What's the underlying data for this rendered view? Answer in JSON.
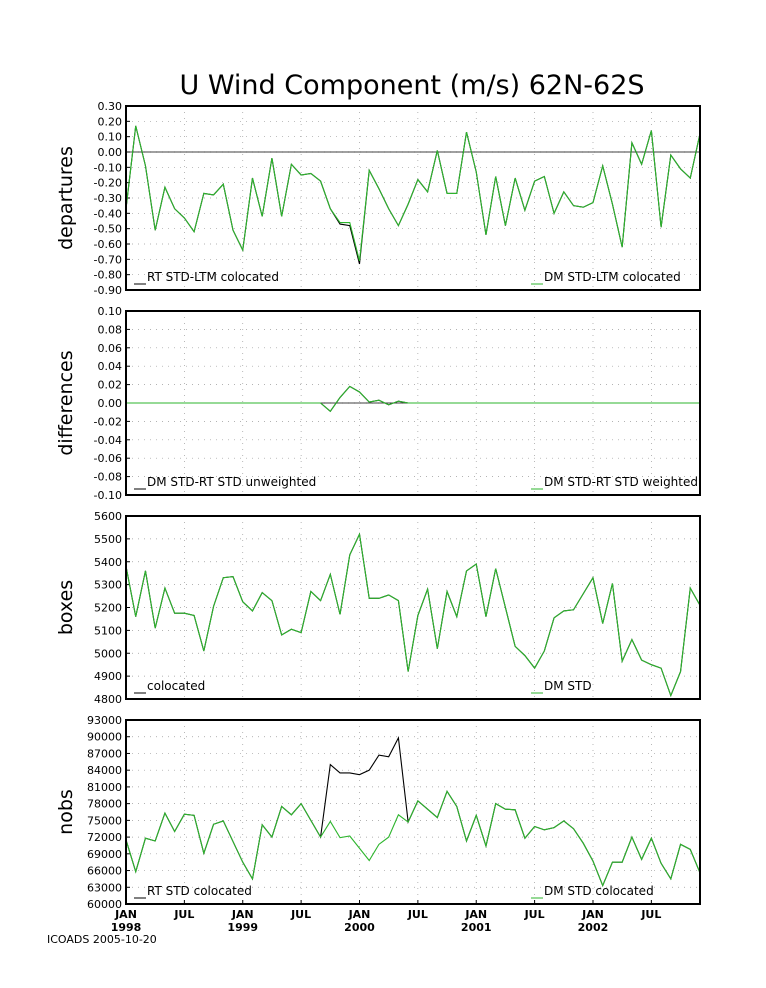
{
  "footer": "ICOADS 2005-10-20",
  "colors": {
    "rt": "#000000",
    "dm": "#2db52d"
  },
  "chart_data": {
    "type": "line",
    "title": "U Wind Component (m/s) 62N-62S",
    "x": {
      "start": "1998-01",
      "months": 60,
      "tick_labels": [
        {
          "label": "JAN",
          "year": "1998",
          "month_index": 0
        },
        {
          "label": "JUL",
          "year": "",
          "month_index": 6
        },
        {
          "label": "JAN",
          "year": "1999",
          "month_index": 12
        },
        {
          "label": "JUL",
          "year": "",
          "month_index": 18
        },
        {
          "label": "JAN",
          "year": "2000",
          "month_index": 24
        },
        {
          "label": "JUL",
          "year": "",
          "month_index": 30
        },
        {
          "label": "JAN",
          "year": "2001",
          "month_index": 36
        },
        {
          "label": "JUL",
          "year": "",
          "month_index": 42
        },
        {
          "label": "JAN",
          "year": "2002",
          "month_index": 48
        },
        {
          "label": "JUL",
          "year": "",
          "month_index": 54
        }
      ]
    },
    "panels": [
      {
        "ylabel": "departures",
        "ylim": [
          -0.9,
          0.3
        ],
        "ystep": 0.1,
        "decimals": 2,
        "zero_line": true,
        "legend": [
          "RT STD-LTM colocated",
          "DM STD-LTM colocated"
        ],
        "series": [
          {
            "name": "RT STD-LTM colocated",
            "color": "#000000",
            "values": [
              -0.37,
              0.17,
              -0.09,
              -0.51,
              -0.23,
              -0.37,
              -0.43,
              -0.52,
              -0.27,
              -0.28,
              -0.21,
              -0.51,
              -0.64,
              -0.17,
              -0.42,
              -0.04,
              -0.42,
              -0.08,
              -0.15,
              -0.14,
              -0.19,
              -0.37,
              -0.47,
              -0.48,
              -0.73,
              -0.12,
              -0.24,
              -0.37,
              -0.48,
              -0.34,
              -0.18,
              -0.26,
              0.01,
              -0.27,
              -0.27,
              0.13,
              -0.13,
              -0.54,
              -0.16,
              -0.48,
              -0.17,
              -0.38,
              -0.19,
              -0.16,
              -0.4,
              -0.26,
              -0.35,
              -0.36,
              -0.33,
              -0.09,
              -0.34,
              -0.62,
              0.06,
              -0.08,
              0.14,
              -0.49,
              -0.02,
              -0.11,
              -0.17,
              0.12
            ]
          },
          {
            "name": "DM STD-LTM colocated",
            "color": "#2db52d",
            "values": [
              -0.37,
              0.17,
              -0.09,
              -0.51,
              -0.23,
              -0.37,
              -0.43,
              -0.52,
              -0.27,
              -0.28,
              -0.21,
              -0.51,
              -0.64,
              -0.17,
              -0.42,
              -0.04,
              -0.42,
              -0.08,
              -0.15,
              -0.14,
              -0.19,
              -0.37,
              -0.46,
              -0.46,
              -0.71,
              -0.12,
              -0.24,
              -0.37,
              -0.48,
              -0.34,
              -0.18,
              -0.26,
              0.01,
              -0.27,
              -0.27,
              0.13,
              -0.13,
              -0.54,
              -0.16,
              -0.48,
              -0.17,
              -0.38,
              -0.19,
              -0.16,
              -0.4,
              -0.26,
              -0.35,
              -0.36,
              -0.33,
              -0.09,
              -0.34,
              -0.62,
              0.06,
              -0.08,
              0.14,
              -0.49,
              -0.02,
              -0.11,
              -0.17,
              0.12
            ]
          }
        ]
      },
      {
        "ylabel": "differences",
        "ylim": [
          -0.1,
          0.1
        ],
        "ystep": 0.02,
        "decimals": 2,
        "zero_line": true,
        "legend": [
          "DM STD-RT STD unweighted",
          "DM STD-RT STD weighted"
        ],
        "series": [
          {
            "name": "DM STD-RT STD unweighted",
            "color": "#000000",
            "values": [
              0,
              0,
              0,
              0,
              0,
              0,
              0,
              0,
              0,
              0,
              0,
              0,
              0,
              0,
              0,
              0,
              0,
              0,
              0,
              0,
              0,
              -0.009,
              0.006,
              0.018,
              0.012,
              0.001,
              0.003,
              -0.002,
              0.002,
              0,
              0,
              0,
              0,
              0,
              0,
              0,
              0,
              0,
              0,
              0,
              0,
              0,
              0,
              0,
              0,
              0,
              0,
              0,
              0,
              0,
              0,
              0,
              0,
              0,
              0,
              0,
              0,
              0,
              0,
              0
            ]
          },
          {
            "name": "DM STD-RT STD weighted",
            "color": "#2db52d",
            "values": [
              0,
              0,
              0,
              0,
              0,
              0,
              0,
              0,
              0,
              0,
              0,
              0,
              0,
              0,
              0,
              0,
              0,
              0,
              0,
              0,
              0,
              -0.009,
              0.006,
              0.018,
              0.012,
              0.001,
              0.003,
              -0.002,
              0.002,
              0,
              0,
              0,
              0,
              0,
              0,
              0,
              0,
              0,
              0,
              0,
              0,
              0,
              0,
              0,
              0,
              0,
              0,
              0,
              0,
              0,
              0,
              0,
              0,
              0,
              0,
              0,
              0,
              0,
              0,
              0
            ]
          }
        ]
      },
      {
        "ylabel": "boxes",
        "ylim": [
          4800,
          5600
        ],
        "ystep": 100,
        "decimals": 0,
        "zero_line": false,
        "legend": [
          "colocated",
          "DM STD"
        ],
        "series": [
          {
            "name": "colocated",
            "color": "#000000",
            "values": [
              5380,
              5160,
              5360,
              5110,
              5285,
              5175,
              5175,
              5165,
              5010,
              5205,
              5330,
              5335,
              5225,
              5185,
              5265,
              5230,
              5080,
              5105,
              5090,
              5270,
              5230,
              5345,
              5170,
              5430,
              5520,
              5240,
              5240,
              5255,
              5230,
              4920,
              5165,
              5280,
              5020,
              5270,
              5160,
              5360,
              5390,
              5160,
              5370,
              5200,
              5030,
              4990,
              4935,
              5010,
              5155,
              5185,
              5190,
              5260,
              5330,
              5130,
              5305,
              4965,
              5060,
              4970,
              4950,
              4935,
              4815,
              4920,
              5285,
              5210
            ]
          },
          {
            "name": "DM STD",
            "color": "#2db52d",
            "values": [
              5380,
              5160,
              5360,
              5110,
              5285,
              5175,
              5175,
              5165,
              5010,
              5205,
              5330,
              5335,
              5225,
              5185,
              5265,
              5230,
              5080,
              5105,
              5090,
              5270,
              5230,
              5345,
              5170,
              5430,
              5520,
              5240,
              5240,
              5255,
              5230,
              4920,
              5165,
              5280,
              5020,
              5270,
              5160,
              5360,
              5390,
              5160,
              5370,
              5200,
              5030,
              4990,
              4935,
              5010,
              5155,
              5185,
              5190,
              5260,
              5330,
              5130,
              5305,
              4965,
              5060,
              4970,
              4950,
              4935,
              4815,
              4920,
              5285,
              5210
            ]
          }
        ]
      },
      {
        "ylabel": "nobs",
        "ylim": [
          60000,
          93000
        ],
        "ystep": 3000,
        "decimals": 0,
        "zero_line": false,
        "legend": [
          "RT STD colocated",
          "DM STD colocated"
        ],
        "series": [
          {
            "name": "RT STD colocated",
            "color": "#000000",
            "values": [
              71500,
              65800,
              71800,
              71300,
              76300,
              73000,
              76100,
              75900,
              69100,
              74300,
              74900,
              71200,
              67500,
              64500,
              74200,
              72000,
              77500,
              76000,
              78000,
              75000,
              72000,
              85000,
              83500,
              83500,
              83200,
              84000,
              86700,
              86400,
              89800,
              74700,
              78500,
              77000,
              75500,
              80200,
              77500,
              71300,
              75900,
              70400,
              78000,
              77000,
              76900,
              71800,
              73900,
              73300,
              73700,
              74900,
              73500,
              70900,
              67700,
              63300,
              67500,
              67500,
              72000,
              68000,
              71800,
              67300,
              64500,
              70700,
              69800,
              65600
            ]
          },
          {
            "name": "DM STD colocated",
            "color": "#2db52d",
            "values": [
              71500,
              65800,
              71800,
              71300,
              76300,
              73000,
              76100,
              75900,
              69100,
              74300,
              74900,
              71200,
              67500,
              64500,
              74200,
              72000,
              77500,
              76000,
              78000,
              75000,
              72000,
              74800,
              71900,
              72200,
              70000,
              67800,
              70700,
              72000,
              76000,
              74700,
              78500,
              77000,
              75500,
              80200,
              77500,
              71300,
              75900,
              70400,
              78000,
              77000,
              76900,
              71800,
              73900,
              73300,
              73700,
              74900,
              73500,
              70900,
              67700,
              63300,
              67500,
              67500,
              72000,
              68000,
              71800,
              67300,
              64500,
              70700,
              69800,
              65600
            ]
          }
        ]
      }
    ]
  }
}
